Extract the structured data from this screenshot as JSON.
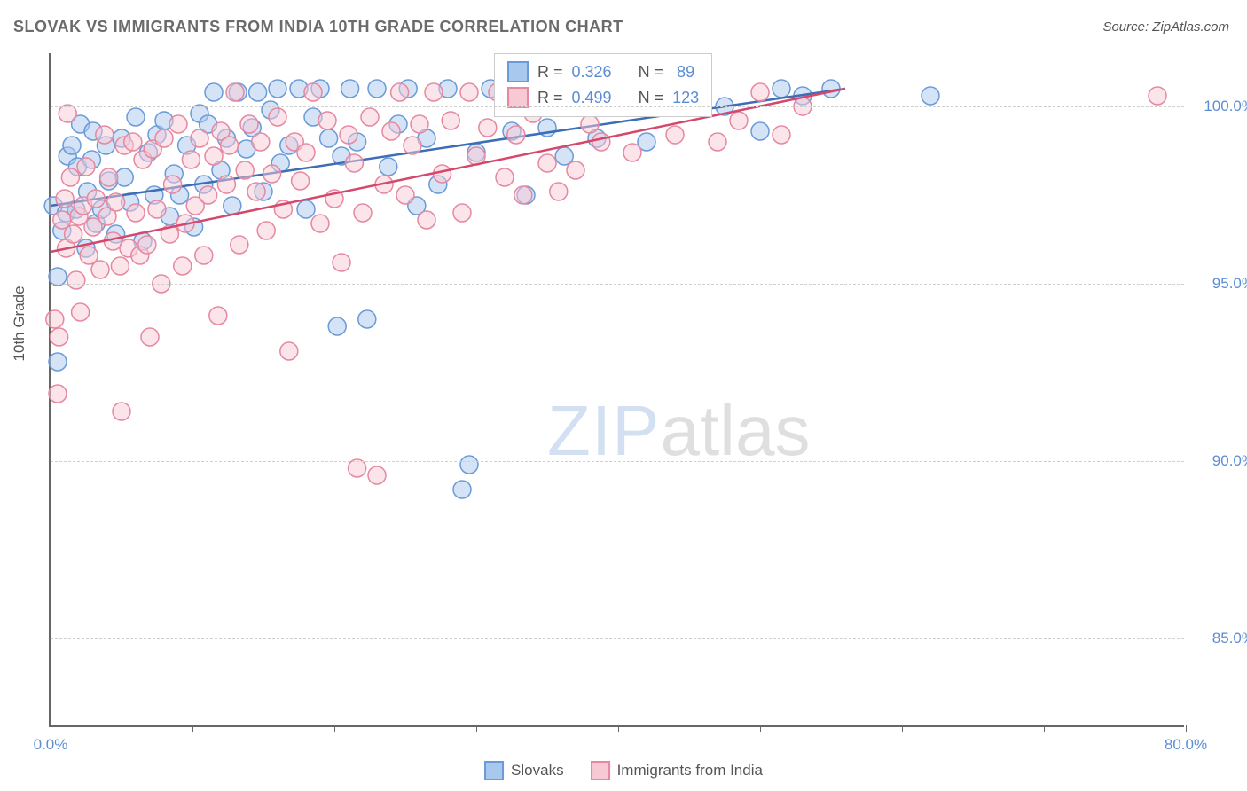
{
  "title": "SLOVAK VS IMMIGRANTS FROM INDIA 10TH GRADE CORRELATION CHART",
  "source": "Source: ZipAtlas.com",
  "y_axis_label": "10th Grade",
  "watermark": {
    "part1": "ZIP",
    "part2": "atlas"
  },
  "chart": {
    "type": "scatter",
    "background_color": "#ffffff",
    "grid_color": "#d0d0d0",
    "axis_color": "#666666",
    "xlim": [
      0,
      80
    ],
    "ylim": [
      82.5,
      101.5
    ],
    "x_ticks": [
      0,
      10,
      20,
      30,
      40,
      50,
      60,
      70,
      80
    ],
    "x_tick_labels": {
      "0": "0.0%",
      "80": "80.0%"
    },
    "y_ticks": [
      85.0,
      90.0,
      95.0,
      100.0
    ],
    "y_tick_labels": [
      "85.0%",
      "90.0%",
      "95.0%",
      "100.0%"
    ],
    "title_fontsize": 18,
    "label_fontsize": 17,
    "tick_fontsize": 17,
    "tick_color": "#5b8dd6",
    "marker_radius": 10,
    "marker_opacity": 0.5,
    "line_width": 2.5,
    "series": [
      {
        "id": "slovaks",
        "label": "Slovaks",
        "fill_color": "#a9c8ee",
        "stroke_color": "#6a9bd8",
        "line_color": "#3d6db5",
        "R": "0.326",
        "N": "89",
        "trend": {
          "x1": 0,
          "y1": 97.2,
          "x2": 56,
          "y2": 100.5
        },
        "points": [
          [
            0.2,
            97.2
          ],
          [
            0.5,
            95.2
          ],
          [
            0.5,
            92.8
          ],
          [
            0.8,
            96.5
          ],
          [
            1.1,
            97.0
          ],
          [
            1.2,
            98.6
          ],
          [
            1.5,
            98.9
          ],
          [
            1.8,
            97.1
          ],
          [
            1.9,
            98.3
          ],
          [
            2.1,
            99.5
          ],
          [
            2.5,
            96.0
          ],
          [
            2.6,
            97.6
          ],
          [
            2.9,
            98.5
          ],
          [
            3.0,
            99.3
          ],
          [
            3.2,
            96.7
          ],
          [
            3.6,
            97.1
          ],
          [
            3.9,
            98.9
          ],
          [
            4.1,
            97.9
          ],
          [
            4.6,
            96.4
          ],
          [
            5.0,
            99.1
          ],
          [
            5.2,
            98.0
          ],
          [
            5.6,
            97.3
          ],
          [
            6.0,
            99.7
          ],
          [
            6.5,
            96.2
          ],
          [
            6.9,
            98.7
          ],
          [
            7.3,
            97.5
          ],
          [
            7.5,
            99.2
          ],
          [
            8.0,
            99.6
          ],
          [
            8.4,
            96.9
          ],
          [
            8.7,
            98.1
          ],
          [
            9.1,
            97.5
          ],
          [
            9.6,
            98.9
          ],
          [
            10.1,
            96.6
          ],
          [
            10.5,
            99.8
          ],
          [
            10.8,
            97.8
          ],
          [
            11.1,
            99.5
          ],
          [
            11.5,
            100.4
          ],
          [
            12.0,
            98.2
          ],
          [
            12.4,
            99.1
          ],
          [
            12.8,
            97.2
          ],
          [
            13.2,
            100.4
          ],
          [
            13.8,
            98.8
          ],
          [
            14.2,
            99.4
          ],
          [
            14.6,
            100.4
          ],
          [
            15.0,
            97.6
          ],
          [
            15.5,
            99.9
          ],
          [
            16.0,
            100.5
          ],
          [
            16.2,
            98.4
          ],
          [
            16.8,
            98.9
          ],
          [
            17.5,
            100.5
          ],
          [
            18.0,
            97.1
          ],
          [
            18.5,
            99.7
          ],
          [
            19.0,
            100.5
          ],
          [
            19.6,
            99.1
          ],
          [
            20.2,
            93.8
          ],
          [
            20.5,
            98.6
          ],
          [
            21.1,
            100.5
          ],
          [
            21.6,
            99.0
          ],
          [
            22.3,
            94.0
          ],
          [
            23.0,
            100.5
          ],
          [
            23.8,
            98.3
          ],
          [
            24.5,
            99.5
          ],
          [
            25.2,
            100.5
          ],
          [
            25.8,
            97.2
          ],
          [
            26.5,
            99.1
          ],
          [
            27.3,
            97.8
          ],
          [
            28.0,
            100.5
          ],
          [
            29.0,
            89.2
          ],
          [
            29.5,
            89.9
          ],
          [
            30.0,
            98.7
          ],
          [
            31.0,
            100.5
          ],
          [
            32.5,
            99.3
          ],
          [
            33.5,
            97.5
          ],
          [
            34.2,
            100.5
          ],
          [
            35.0,
            99.4
          ],
          [
            36.2,
            98.6
          ],
          [
            37.5,
            100.5
          ],
          [
            38.5,
            99.1
          ],
          [
            40.0,
            100.4
          ],
          [
            42.0,
            99.0
          ],
          [
            45.0,
            100.5
          ],
          [
            47.5,
            100.0
          ],
          [
            50.0,
            99.3
          ],
          [
            51.5,
            100.5
          ],
          [
            53.0,
            100.3
          ],
          [
            55.0,
            100.5
          ],
          [
            62.0,
            100.3
          ]
        ]
      },
      {
        "id": "immigrants",
        "label": "Immigrants from India",
        "fill_color": "#f7c9d5",
        "stroke_color": "#e688a0",
        "line_color": "#d5486c",
        "R": "0.499",
        "N": "123",
        "trend": {
          "x1": 0,
          "y1": 95.9,
          "x2": 56,
          "y2": 100.5
        },
        "points": [
          [
            0.3,
            94.0
          ],
          [
            0.5,
            91.9
          ],
          [
            0.6,
            93.5
          ],
          [
            0.8,
            96.8
          ],
          [
            1.0,
            97.4
          ],
          [
            1.1,
            96.0
          ],
          [
            1.2,
            99.8
          ],
          [
            1.4,
            98.0
          ],
          [
            1.6,
            96.4
          ],
          [
            1.8,
            95.1
          ],
          [
            2.0,
            96.9
          ],
          [
            2.1,
            94.2
          ],
          [
            2.3,
            97.2
          ],
          [
            2.5,
            98.3
          ],
          [
            2.7,
            95.8
          ],
          [
            3.0,
            96.6
          ],
          [
            3.2,
            97.4
          ],
          [
            3.5,
            95.4
          ],
          [
            3.8,
            99.2
          ],
          [
            4.0,
            96.9
          ],
          [
            4.1,
            98.0
          ],
          [
            4.4,
            96.2
          ],
          [
            4.6,
            97.3
          ],
          [
            4.9,
            95.5
          ],
          [
            5.0,
            91.4
          ],
          [
            5.2,
            98.9
          ],
          [
            5.5,
            96.0
          ],
          [
            5.8,
            99.0
          ],
          [
            6.0,
            97.0
          ],
          [
            6.3,
            95.8
          ],
          [
            6.5,
            98.5
          ],
          [
            6.8,
            96.1
          ],
          [
            7.0,
            93.5
          ],
          [
            7.2,
            98.8
          ],
          [
            7.5,
            97.1
          ],
          [
            7.8,
            95.0
          ],
          [
            8.0,
            99.1
          ],
          [
            8.4,
            96.4
          ],
          [
            8.6,
            97.8
          ],
          [
            9.0,
            99.5
          ],
          [
            9.3,
            95.5
          ],
          [
            9.5,
            96.7
          ],
          [
            9.9,
            98.5
          ],
          [
            10.2,
            97.2
          ],
          [
            10.5,
            99.1
          ],
          [
            10.8,
            95.8
          ],
          [
            11.1,
            97.5
          ],
          [
            11.5,
            98.6
          ],
          [
            11.8,
            94.1
          ],
          [
            12.0,
            99.3
          ],
          [
            12.4,
            97.8
          ],
          [
            12.6,
            98.9
          ],
          [
            13.0,
            100.4
          ],
          [
            13.3,
            96.1
          ],
          [
            13.7,
            98.2
          ],
          [
            14.0,
            99.5
          ],
          [
            14.5,
            97.6
          ],
          [
            14.8,
            99.0
          ],
          [
            15.2,
            96.5
          ],
          [
            15.6,
            98.1
          ],
          [
            16.0,
            99.7
          ],
          [
            16.4,
            97.1
          ],
          [
            16.8,
            93.1
          ],
          [
            17.2,
            99.0
          ],
          [
            17.6,
            97.9
          ],
          [
            18.0,
            98.7
          ],
          [
            18.5,
            100.4
          ],
          [
            19.0,
            96.7
          ],
          [
            19.5,
            99.6
          ],
          [
            20.0,
            97.4
          ],
          [
            20.5,
            95.6
          ],
          [
            21.0,
            99.2
          ],
          [
            21.4,
            98.4
          ],
          [
            21.6,
            89.8
          ],
          [
            22.0,
            97.0
          ],
          [
            22.5,
            99.7
          ],
          [
            23.0,
            89.6
          ],
          [
            23.5,
            97.8
          ],
          [
            24.0,
            99.3
          ],
          [
            24.6,
            100.4
          ],
          [
            25.0,
            97.5
          ],
          [
            25.5,
            98.9
          ],
          [
            26.0,
            99.5
          ],
          [
            26.5,
            96.8
          ],
          [
            27.0,
            100.4
          ],
          [
            27.6,
            98.1
          ],
          [
            28.2,
            99.6
          ],
          [
            29.0,
            97.0
          ],
          [
            29.5,
            100.4
          ],
          [
            30.0,
            98.6
          ],
          [
            30.8,
            99.4
          ],
          [
            31.5,
            100.4
          ],
          [
            32.0,
            98.0
          ],
          [
            32.8,
            99.2
          ],
          [
            33.3,
            97.5
          ],
          [
            34.0,
            99.8
          ],
          [
            35.0,
            98.4
          ],
          [
            35.8,
            97.6
          ],
          [
            36.5,
            100.4
          ],
          [
            37.0,
            98.2
          ],
          [
            38.0,
            99.5
          ],
          [
            38.8,
            99.0
          ],
          [
            40.0,
            100.4
          ],
          [
            41.0,
            98.7
          ],
          [
            42.5,
            100.0
          ],
          [
            44.0,
            99.2
          ],
          [
            45.5,
            100.4
          ],
          [
            47.0,
            99.0
          ],
          [
            48.5,
            99.6
          ],
          [
            50.0,
            100.4
          ],
          [
            51.5,
            99.2
          ],
          [
            53.0,
            100.0
          ],
          [
            78.0,
            100.3
          ]
        ]
      }
    ]
  },
  "legend": {
    "stats_labels": {
      "R": "R =",
      "N": "N ="
    }
  }
}
